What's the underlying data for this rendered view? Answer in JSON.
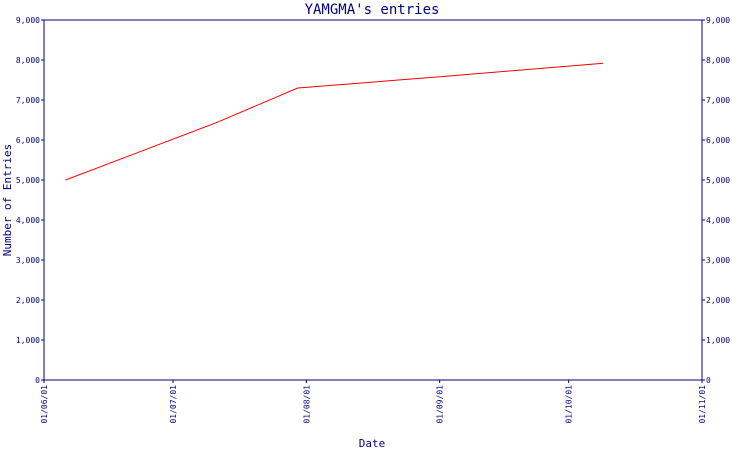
{
  "chart_data": {
    "type": "line",
    "title": "YAMGMA's entries",
    "xlabel": "Date",
    "ylabel": "Number of Entries",
    "ylim": [
      0,
      9000
    ],
    "xlim": [
      "2006-06-01",
      "2006-11-01"
    ],
    "y_ticks": [
      "0",
      "1,000",
      "2,000",
      "3,000",
      "4,000",
      "5,000",
      "6,000",
      "7,000",
      "8,000",
      "9,000"
    ],
    "x_ticks": [
      "01/06/01",
      "01/07/01",
      "01/08/01",
      "01/09/01",
      "01/10/01",
      "01/11/01"
    ],
    "grid": false,
    "colors": {
      "axis": "#000080",
      "series": "#ff0000",
      "text": "#000080"
    },
    "series": [
      {
        "x": [
          "2006-06-06",
          "2006-07-11",
          "2006-07-30",
          "2006-09-01",
          "2006-10-09"
        ],
        "values": [
          5000,
          6430,
          7300,
          7580,
          7920
        ]
      }
    ]
  }
}
